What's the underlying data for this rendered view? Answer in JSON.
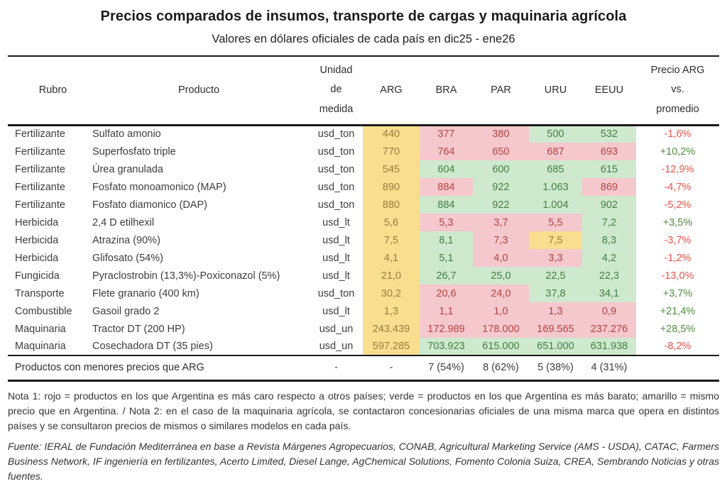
{
  "title": "Precios comparados de insumos, transporte de cargas y maquinaria agrícola",
  "subtitle": "Valores en dólares oficiales de cada país en dic25 - ene26",
  "chart_data": {
    "type": "table",
    "col_headers": {
      "rubro": "Rubro",
      "producto": "Producto",
      "unidad": [
        "Unidad",
        "de",
        "medida"
      ],
      "countries": [
        "ARG",
        "BRA",
        "PAR",
        "URU",
        "EEUU"
      ],
      "precio_vs": [
        "Precio ARG",
        "vs.",
        "promedio"
      ]
    },
    "rows": [
      {
        "rubro": "Fertilizante",
        "producto": "Sulfato amonio",
        "unidad": "usd_ton",
        "values": [
          {
            "v": "440",
            "c": "yellow"
          },
          {
            "v": "377",
            "c": "red"
          },
          {
            "v": "380",
            "c": "red"
          },
          {
            "v": "500",
            "c": "green"
          },
          {
            "v": "532",
            "c": "green"
          }
        ],
        "vs": {
          "v": "-1,6%",
          "c": "neg"
        }
      },
      {
        "rubro": "Fertilizante",
        "producto": "Superfosfato triple",
        "unidad": "usd_ton",
        "values": [
          {
            "v": "770",
            "c": "yellow"
          },
          {
            "v": "764",
            "c": "red"
          },
          {
            "v": "650",
            "c": "red"
          },
          {
            "v": "687",
            "c": "red"
          },
          {
            "v": "693",
            "c": "red"
          }
        ],
        "vs": {
          "v": "+10,2%",
          "c": "pos"
        }
      },
      {
        "rubro": "Fertilizante",
        "producto": "Úrea granulada",
        "unidad": "usd_ton",
        "values": [
          {
            "v": "545",
            "c": "yellow"
          },
          {
            "v": "604",
            "c": "green"
          },
          {
            "v": "600",
            "c": "green"
          },
          {
            "v": "685",
            "c": "green"
          },
          {
            "v": "615",
            "c": "green"
          }
        ],
        "vs": {
          "v": "-12,9%",
          "c": "neg"
        }
      },
      {
        "rubro": "Fertilizante",
        "producto": "Fosfato monoamonico (MAP)",
        "unidad": "usd_ton",
        "values": [
          {
            "v": "890",
            "c": "yellow"
          },
          {
            "v": "884",
            "c": "red"
          },
          {
            "v": "922",
            "c": "green"
          },
          {
            "v": "1.063",
            "c": "green"
          },
          {
            "v": "869",
            "c": "red"
          }
        ],
        "vs": {
          "v": "-4,7%",
          "c": "neg"
        }
      },
      {
        "rubro": "Fertilizante",
        "producto": "Fosfato diamonico (DAP)",
        "unidad": "usd_ton",
        "values": [
          {
            "v": "880",
            "c": "yellow"
          },
          {
            "v": "884",
            "c": "green"
          },
          {
            "v": "922",
            "c": "green"
          },
          {
            "v": "1.004",
            "c": "green"
          },
          {
            "v": "902",
            "c": "green"
          }
        ],
        "vs": {
          "v": "-5,2%",
          "c": "neg"
        }
      },
      {
        "rubro": "Herbicida",
        "producto": "2,4 D etilhexil",
        "unidad": "usd_lt",
        "values": [
          {
            "v": "5,6",
            "c": "yellow"
          },
          {
            "v": "5,3",
            "c": "red"
          },
          {
            "v": "3,7",
            "c": "red"
          },
          {
            "v": "5,5",
            "c": "red"
          },
          {
            "v": "7,2",
            "c": "green"
          }
        ],
        "vs": {
          "v": "+3,5%",
          "c": "pos"
        }
      },
      {
        "rubro": "Herbicida",
        "producto": "Atrazina (90%)",
        "unidad": "usd_lt",
        "values": [
          {
            "v": "7,5",
            "c": "yellow"
          },
          {
            "v": "8,1",
            "c": "green"
          },
          {
            "v": "7,3",
            "c": "red"
          },
          {
            "v": "7,5",
            "c": "yellow"
          },
          {
            "v": "8,3",
            "c": "green"
          }
        ],
        "vs": {
          "v": "-3,7%",
          "c": "neg"
        }
      },
      {
        "rubro": "Herbicida",
        "producto": "Glifosato (54%)",
        "unidad": "usd_lt",
        "values": [
          {
            "v": "4,1",
            "c": "yellow"
          },
          {
            "v": "5,1",
            "c": "green"
          },
          {
            "v": "4,0",
            "c": "red"
          },
          {
            "v": "3,3",
            "c": "red"
          },
          {
            "v": "4,2",
            "c": "green"
          }
        ],
        "vs": {
          "v": "-1,2%",
          "c": "neg"
        }
      },
      {
        "rubro": "Fungicida",
        "producto": "Pyraclostrobin (13,3%)-Poxiconazol (5%)",
        "unidad": "usd_lt",
        "values": [
          {
            "v": "21,0",
            "c": "yellow"
          },
          {
            "v": "26,7",
            "c": "green"
          },
          {
            "v": "25,0",
            "c": "green"
          },
          {
            "v": "22,5",
            "c": "green"
          },
          {
            "v": "22,3",
            "c": "green"
          }
        ],
        "vs": {
          "v": "-13,0%",
          "c": "neg"
        }
      },
      {
        "rubro": "Transporte",
        "producto": "Flete granario (400 km)",
        "unidad": "usd_ton",
        "values": [
          {
            "v": "30,2",
            "c": "yellow"
          },
          {
            "v": "20,6",
            "c": "red"
          },
          {
            "v": "24,0",
            "c": "red"
          },
          {
            "v": "37,8",
            "c": "green"
          },
          {
            "v": "34,1",
            "c": "green"
          }
        ],
        "vs": {
          "v": "+3,7%",
          "c": "pos"
        }
      },
      {
        "rubro": "Combustible",
        "producto": "Gasoil grado 2",
        "unidad": "usd_lt",
        "values": [
          {
            "v": "1,3",
            "c": "yellow"
          },
          {
            "v": "1,1",
            "c": "red"
          },
          {
            "v": "1,0",
            "c": "red"
          },
          {
            "v": "1,3",
            "c": "red"
          },
          {
            "v": "0,9",
            "c": "red"
          }
        ],
        "vs": {
          "v": "+21,4%",
          "c": "pos"
        }
      },
      {
        "rubro": "Maquinaria",
        "producto": "Tractor DT (200 HP)",
        "unidad": "usd_un",
        "values": [
          {
            "v": "243.439",
            "c": "yellow"
          },
          {
            "v": "172.989",
            "c": "red"
          },
          {
            "v": "178.000",
            "c": "red"
          },
          {
            "v": "169.565",
            "c": "red"
          },
          {
            "v": "237.276",
            "c": "red"
          }
        ],
        "vs": {
          "v": "+28,5%",
          "c": "pos"
        }
      },
      {
        "rubro": "Maquinaria",
        "producto": "Cosechadora DT (35 pies)",
        "unidad": "usd_un",
        "values": [
          {
            "v": "597.285",
            "c": "yellow"
          },
          {
            "v": "703.923",
            "c": "green"
          },
          {
            "v": "615.000",
            "c": "green"
          },
          {
            "v": "651.000",
            "c": "green"
          },
          {
            "v": "631.938",
            "c": "green"
          }
        ],
        "vs": {
          "v": "-8,2%",
          "c": "neg"
        }
      }
    ],
    "summary": {
      "label": "Productos con menores precios que ARG",
      "unidad": "-",
      "arg": "-",
      "bra": "7 (54%)",
      "par": "8 (62%)",
      "uru": "5 (38%)",
      "eeuu": "4 (31%)",
      "vs": ""
    }
  },
  "notes": {
    "nota": "Nota 1: rojo = productos en los que Argentina es más caro respecto a otros países; verde = productos en los que Argentina es más barato; amarillo = mismo precio que en Argentina.  / Nota 2: en el caso de la maquinaria agrícola, se contactaron concesionarias oficiales de una misma marca que opera en distintos países y se consultaron precios de mismos o similares modelos en cada país.",
    "fuente": "Fuente: IERAL de Fundación Mediterránea en base a Revista Márgenes Agropecuarios, CONAB, Agricultural Marketing Service (AMS - USDA), CATAC, Farmers Business Network, IF ingeniería en fertilizantes, Acerto Limited, Diesel Lange, AgChemical Solutions, Fomento Colonia Suiza, CREA, Sembrando Noticias y otras fuentes."
  },
  "colors": {
    "same_price_bg": "#F8DE8E",
    "same_price_text": "#9C7C3C",
    "arg_more_expensive_bg": "#F5C8CD",
    "arg_more_expensive_text": "#B4433E",
    "arg_cheaper_bg": "#CFE9CE",
    "arg_cheaper_text": "#417F42",
    "vs_negative_text": "#EA5348",
    "vs_positive_text": "#4F8D3D",
    "rule": "#1A1A1A"
  }
}
